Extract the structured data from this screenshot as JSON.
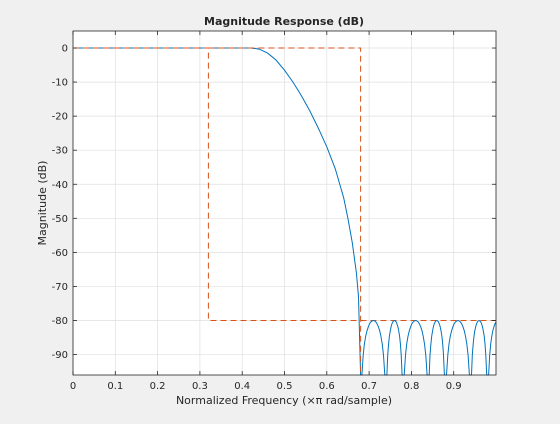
{
  "chart_data": {
    "type": "line",
    "title": "Magnitude Response (dB)",
    "xlabel": "Normalized Frequency (×π rad/sample)",
    "ylabel": "Magnitude (dB)",
    "xlim": [
      0,
      1
    ],
    "ylim": [
      -96,
      5
    ],
    "grid": true,
    "legend": "none",
    "x_ticks": [
      0,
      0.1,
      0.2,
      0.3,
      0.4,
      0.5,
      0.6,
      0.7,
      0.8,
      0.9
    ],
    "x_tick_labels": [
      "0",
      "0.1",
      "0.2",
      "0.3",
      "0.4",
      "0.5",
      "0.6",
      "0.7",
      "0.8",
      "0.9"
    ],
    "y_ticks": [
      0,
      -10,
      -20,
      -30,
      -40,
      -50,
      -60,
      -70,
      -80,
      -90
    ],
    "y_tick_labels": [
      "0",
      "-10",
      "-20",
      "-30",
      "-40",
      "-50",
      "-60",
      "-70",
      "-80",
      "-90"
    ],
    "colors": {
      "response": "#0072bd",
      "mask": "#d95319",
      "axes_bg": "#ffffff",
      "figure_bg": "#f0f0f0",
      "grid": "#dfdfdf",
      "axis": "#262626"
    },
    "series": [
      {
        "style": "solid",
        "x": [
          0,
          0.4,
          0.42,
          0.44,
          0.46,
          0.48,
          0.5,
          0.52,
          0.54,
          0.56,
          0.58,
          0.6,
          0.62,
          0.64,
          0.65,
          0.66,
          0.67,
          0.675,
          0.68
        ],
        "y": [
          0,
          0,
          0,
          -0.3,
          -1.5,
          -3.5,
          -6.5,
          -10,
          -14,
          -18.5,
          -23.5,
          -29,
          -35.5,
          -44,
          -50,
          -57,
          -66,
          -73,
          -96
        ]
      },
      {
        "style": "dashed",
        "x": [
          0,
          0.32,
          0.32,
          0.68,
          0.68,
          1.0
        ],
        "y": [
          0,
          0,
          -80,
          -80,
          -80,
          -80
        ]
      },
      {
        "style": "dashed",
        "x": [
          0.32,
          0.68,
          0.68
        ],
        "y": [
          0,
          0,
          -96
        ]
      }
    ],
    "stopband_ripple": {
      "nulls": [
        0.68,
        0.74,
        0.78,
        0.84,
        0.88,
        0.94,
        0.98
      ],
      "peak": -80
    }
  }
}
